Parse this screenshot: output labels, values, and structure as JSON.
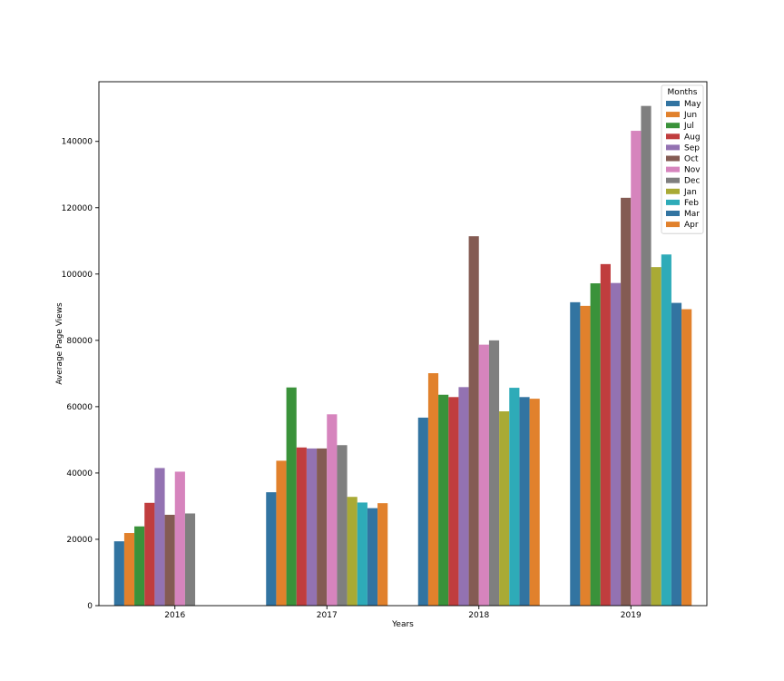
{
  "chart_data": {
    "type": "bar",
    "xlabel": "Years",
    "ylabel": "Average Page Views",
    "categories": [
      "2016",
      "2017",
      "2018",
      "2019"
    ],
    "ylim": [
      0,
      158000
    ],
    "yticks": [
      0,
      20000,
      40000,
      60000,
      80000,
      100000,
      120000,
      140000
    ],
    "grid": false,
    "legend": {
      "title": "Months",
      "placement": "top-right"
    },
    "series": [
      {
        "name": "May",
        "color": "#3274a1",
        "values": [
          19400,
          34200,
          56700,
          91500
        ]
      },
      {
        "name": "Jun",
        "color": "#e1812c",
        "values": [
          21900,
          43700,
          70100,
          90400
        ]
      },
      {
        "name": "Jul",
        "color": "#3a923a",
        "values": [
          23900,
          65800,
          63600,
          97200
        ]
      },
      {
        "name": "Aug",
        "color": "#c03d3e",
        "values": [
          31000,
          47700,
          62900,
          103000
        ]
      },
      {
        "name": "Sep",
        "color": "#9372b2",
        "values": [
          41500,
          47400,
          65900,
          97300
        ]
      },
      {
        "name": "Oct",
        "color": "#845b53",
        "values": [
          27400,
          47400,
          111400,
          123000
        ]
      },
      {
        "name": "Nov",
        "color": "#d684bd",
        "values": [
          40400,
          57700,
          78700,
          143200
        ]
      },
      {
        "name": "Dec",
        "color": "#7f7f7f",
        "values": [
          27800,
          48400,
          80000,
          150700
        ]
      },
      {
        "name": "Jan",
        "color": "#a9aa35",
        "values": [
          null,
          32800,
          58600,
          102100
        ]
      },
      {
        "name": "Feb",
        "color": "#2eabb8",
        "values": [
          null,
          31100,
          65700,
          105900
        ]
      },
      {
        "name": "Mar",
        "color": "#3274a1",
        "values": [
          null,
          29400,
          62900,
          91300
        ]
      },
      {
        "name": "Apr",
        "color": "#e1812c",
        "values": [
          null,
          30900,
          62400,
          89400
        ]
      }
    ]
  }
}
